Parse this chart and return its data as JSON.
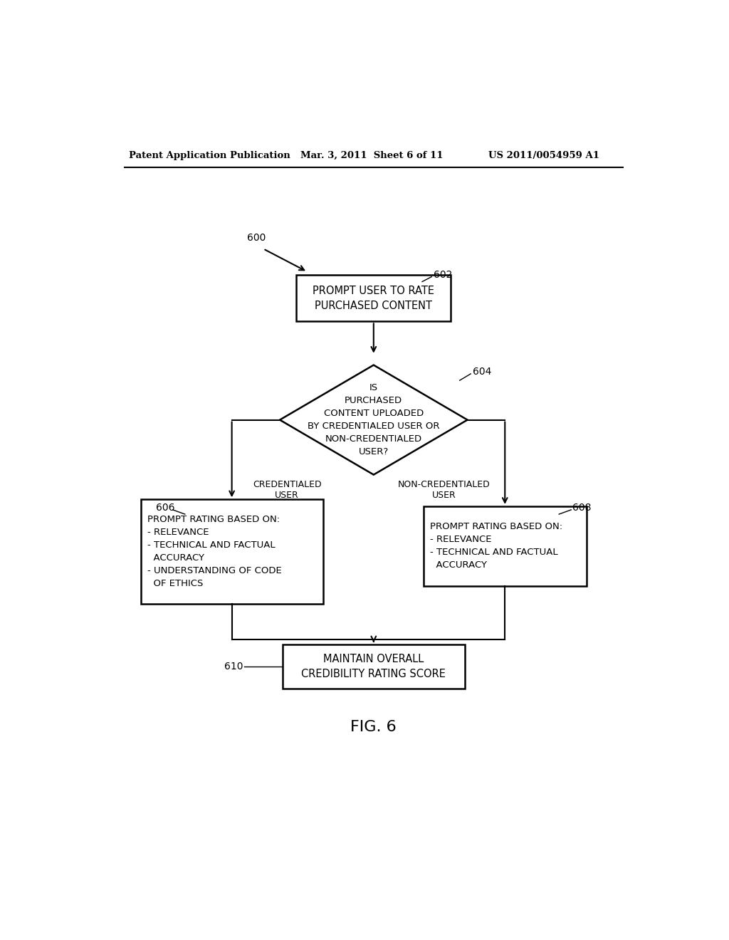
{
  "bg_color": "#ffffff",
  "header_left": "Patent Application Publication",
  "header_center": "Mar. 3, 2011  Sheet 6 of 11",
  "header_right": "US 2011/0054959 A1",
  "fig_label": "FIG. 6",
  "nodes": {
    "label600": "600",
    "box602_label": "602",
    "box602_text": "PROMPT USER TO RATE\nPURCHASED CONTENT",
    "diamond604_label": "604",
    "diamond604_text": "IS\nPURCHASED\nCONTENT UPLOADED\nBY CREDENTIALED USER OR\nNON-CREDENTIALED\nUSER?",
    "box606_label": "606",
    "box606_text": "PROMPT RATING BASED ON:\n- RELEVANCE\n- TECHNICAL AND FACTUAL\n  ACCURACY\n- UNDERSTANDING OF CODE\n  OF ETHICS",
    "box608_label": "608",
    "box608_text": "PROMPT RATING BASED ON:\n- RELEVANCE\n- TECHNICAL AND FACTUAL\n  ACCURACY",
    "box610_label": "610",
    "box610_text": "MAINTAIN OVERALL\nCREDIBILITY RATING SCORE",
    "left_branch_label": "CREDENTIALED\nUSER",
    "right_branch_label": "NON-CREDENTIALED\nUSER"
  }
}
